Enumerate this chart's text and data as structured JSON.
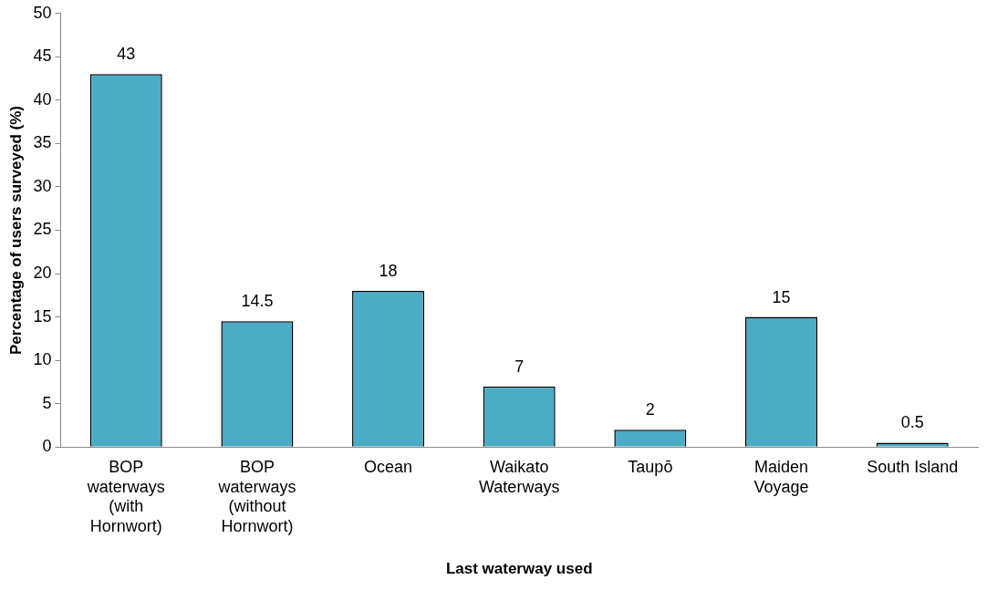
{
  "chart_data": {
    "type": "bar",
    "xlabel": "Last waterway used",
    "ylabel": "Percentage of users surveyed (%)",
    "categories": [
      "BOP waterways (with Hornwort)",
      "BOP waterways (without Hornwort)",
      "Ocean",
      "Waikato Waterways",
      "Taupō",
      "Maiden Voyage",
      "South Island"
    ],
    "values": [
      43,
      14.5,
      18,
      7,
      2,
      15,
      0.5
    ],
    "color": "#4bacc6",
    "ylim": [
      0,
      50
    ],
    "yticks": [
      0,
      5,
      10,
      15,
      20,
      25,
      30,
      35,
      40,
      45,
      50
    ],
    "grid": false,
    "legend": false,
    "data_labels": true
  }
}
